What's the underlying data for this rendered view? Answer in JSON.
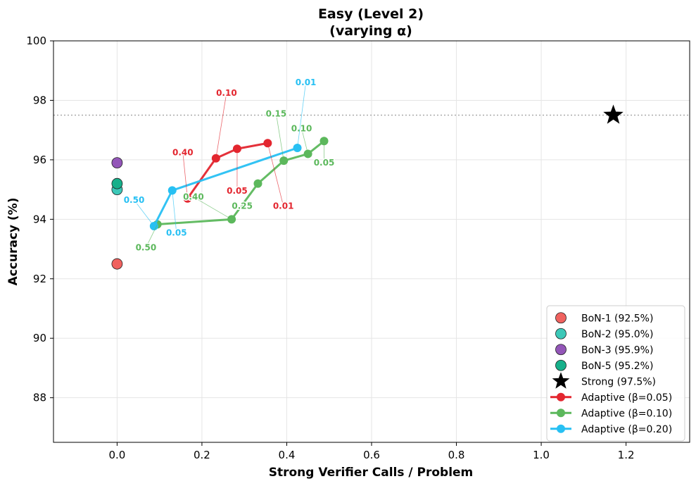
{
  "chart_data": {
    "type": "scatter",
    "title": "Easy (Level 2)",
    "subtitle": "(varying α)",
    "xlabel": "Strong Verifier Calls / Problem",
    "ylabel": "Accuracy (%)",
    "xlim": [
      -0.15,
      1.35
    ],
    "ylim": [
      86.5,
      100
    ],
    "xticks": [
      "0.0",
      "0.2",
      "0.4",
      "0.6",
      "0.8",
      "1.0",
      "1.2"
    ],
    "xtick_values": [
      0.0,
      0.2,
      0.4,
      0.6,
      0.8,
      1.0,
      1.2
    ],
    "yticks": [
      "88",
      "90",
      "92",
      "94",
      "96",
      "98",
      "100"
    ],
    "ytick_values": [
      88,
      90,
      92,
      94,
      96,
      98,
      100
    ],
    "grid": true,
    "legend_position": "lower-right",
    "reference_line": {
      "y": 97.5,
      "color": "#aaaaaa",
      "style": "dotted"
    },
    "baselines": [
      {
        "name": "BoN-1 (92.5%)",
        "x": 0,
        "y": 92.5,
        "color": "#f0625f"
      },
      {
        "name": "BoN-2 (95.0%)",
        "x": 0,
        "y": 95.0,
        "color": "#3cc8b8"
      },
      {
        "name": "BoN-3 (95.9%)",
        "x": 0,
        "y": 95.9,
        "color": "#9356b8"
      },
      {
        "name": "BoN-5 (95.2%)",
        "x": 0,
        "y": 95.2,
        "color": "#16b08a"
      }
    ],
    "strong": {
      "name": "Strong (97.5%)",
      "x": 1.17,
      "y": 97.5,
      "color": "#000000"
    },
    "series": [
      {
        "name": "Adaptive (β=0.05)",
        "color": "#e3262f",
        "points": [
          {
            "x": 0.166,
            "y": 94.7
          },
          {
            "x": 0.233,
            "y": 96.05
          },
          {
            "x": 0.283,
            "y": 96.37
          },
          {
            "x": 0.355,
            "y": 96.56
          }
        ],
        "annotations": [
          {
            "text": "0.40",
            "x": 0.166,
            "y": 94.7,
            "tx": 0.155,
            "ty": 96.25
          },
          {
            "text": "0.10",
            "x": 0.233,
            "y": 96.05,
            "tx": 0.258,
            "ty": 98.25
          },
          {
            "text": "0.05",
            "x": 0.283,
            "y": 96.37,
            "tx": 0.283,
            "ty": 94.95
          },
          {
            "text": "0.01",
            "x": 0.355,
            "y": 96.56,
            "tx": 0.392,
            "ty": 94.45
          }
        ]
      },
      {
        "name": "Adaptive (β=0.10)",
        "color": "#5cb85c",
        "points": [
          {
            "x": 0.095,
            "y": 93.83
          },
          {
            "x": 0.27,
            "y": 94.0
          },
          {
            "x": 0.332,
            "y": 95.2
          },
          {
            "x": 0.393,
            "y": 95.97
          },
          {
            "x": 0.45,
            "y": 96.2
          },
          {
            "x": 0.488,
            "y": 96.63
          }
        ],
        "annotations": [
          {
            "text": "0.50",
            "x": 0.095,
            "y": 93.83,
            "tx": 0.068,
            "ty": 93.05
          },
          {
            "text": "0.40",
            "x": 0.27,
            "y": 94.0,
            "tx": 0.18,
            "ty": 94.75
          },
          {
            "text": "0.25",
            "x": 0.27,
            "y": 94.0,
            "tx": 0.295,
            "ty": 94.45
          },
          {
            "text": "0.15",
            "x": 0.393,
            "y": 95.97,
            "tx": 0.375,
            "ty": 97.55
          },
          {
            "text": "0.10",
            "x": 0.45,
            "y": 96.2,
            "tx": 0.435,
            "ty": 97.05
          },
          {
            "text": "0.05",
            "x": 0.488,
            "y": 96.63,
            "tx": 0.488,
            "ty": 95.9
          }
        ]
      },
      {
        "name": "Adaptive (β=0.20)",
        "color": "#27c0f3",
        "points": [
          {
            "x": 0.087,
            "y": 93.77
          },
          {
            "x": 0.13,
            "y": 94.97
          },
          {
            "x": 0.425,
            "y": 96.4
          }
        ],
        "annotations": [
          {
            "text": "0.50",
            "x": 0.087,
            "y": 93.77,
            "tx": 0.04,
            "ty": 94.65
          },
          {
            "text": "0.05",
            "x": 0.13,
            "y": 94.97,
            "tx": 0.14,
            "ty": 93.55
          },
          {
            "text": "0.01",
            "x": 0.425,
            "y": 96.4,
            "tx": 0.445,
            "ty": 98.6
          }
        ]
      }
    ]
  }
}
